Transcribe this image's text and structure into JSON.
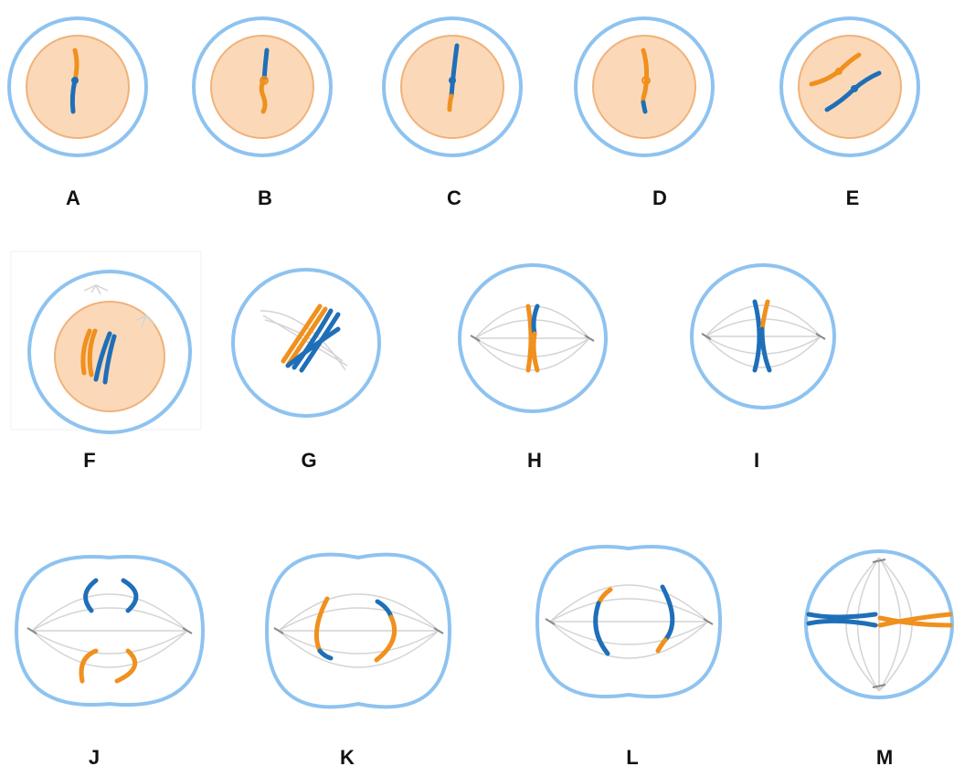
{
  "cells": [
    {
      "label": "A"
    },
    {
      "label": "B"
    },
    {
      "label": "C"
    },
    {
      "label": "D"
    },
    {
      "label": "E"
    },
    {
      "label": "F"
    },
    {
      "label": "G"
    },
    {
      "label": "H"
    },
    {
      "label": "I"
    },
    {
      "label": "J"
    },
    {
      "label": "K"
    },
    {
      "label": "L"
    },
    {
      "label": "M"
    }
  ]
}
